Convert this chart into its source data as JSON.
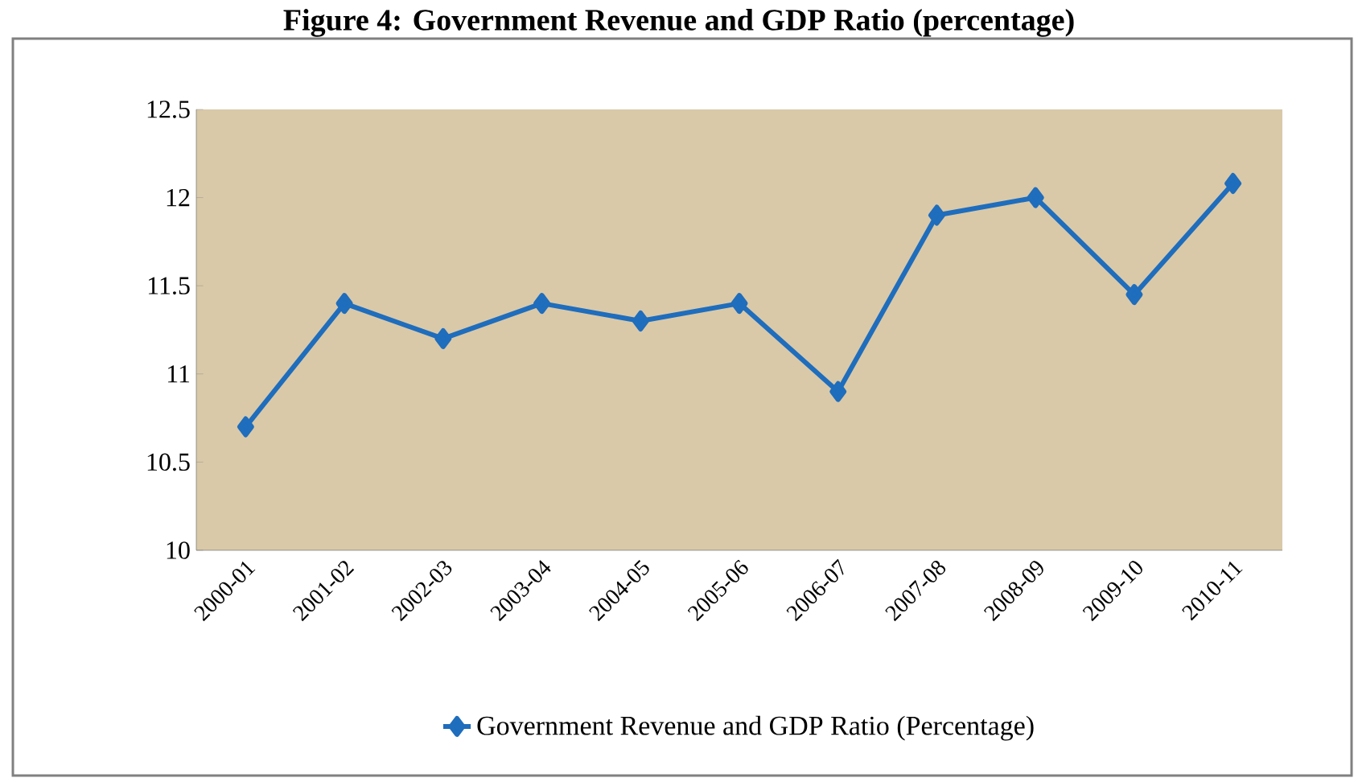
{
  "chart_data": {
    "type": "line",
    "title": "Figure 4: Government Revenue and GDP Ratio (percentage)",
    "categories": [
      "2000-01",
      "2001-02",
      "2002-03",
      "2003-04",
      "2004-05",
      "2005-06",
      "2006-07",
      "2007-08",
      "2008-09",
      "2009-10",
      "2010-11"
    ],
    "series": [
      {
        "name": "Government Revenue and GDP Ratio (Percentage)",
        "color": "#1f6dbd",
        "values": [
          10.7,
          11.4,
          11.2,
          11.4,
          11.3,
          11.4,
          10.9,
          11.9,
          12.0,
          11.45,
          12.08
        ]
      }
    ],
    "ylim": [
      10,
      12.5
    ],
    "yticks": [
      10,
      10.5,
      11,
      11.5,
      12,
      12.5
    ],
    "grid": false,
    "legend": "bottom",
    "marker": "diamond",
    "line_style": "solid"
  }
}
